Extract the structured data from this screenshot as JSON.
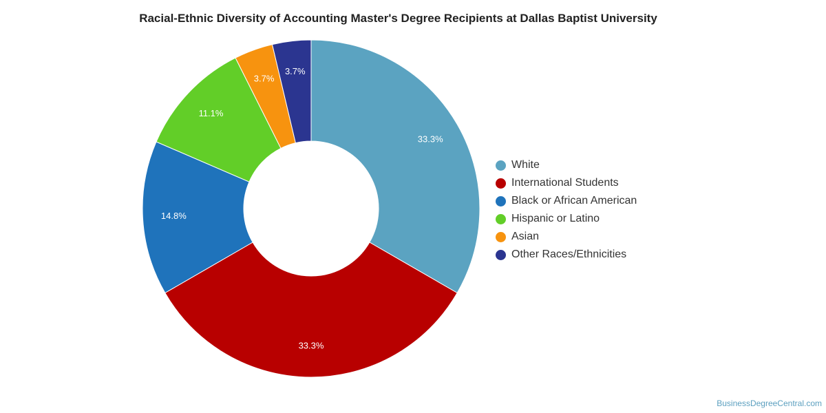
{
  "chart_data": {
    "type": "pie",
    "title": "Racial-Ethnic Diversity of Accounting Master's Degree Recipients at Dallas Baptist University",
    "legend_position": "right",
    "donut": true,
    "slices": [
      {
        "label": "White",
        "value": 33.3,
        "display": "33.3%",
        "color": "#5ba3c1"
      },
      {
        "label": "International Students",
        "value": 33.3,
        "display": "33.3%",
        "color": "#b80000"
      },
      {
        "label": "Black or African American",
        "value": 14.8,
        "display": "14.8%",
        "color": "#1f73bb"
      },
      {
        "label": "Hispanic or Latino",
        "value": 11.1,
        "display": "11.1%",
        "color": "#62ce28"
      },
      {
        "label": "Asian",
        "value": 3.7,
        "display": "3.7%",
        "color": "#f7930f"
      },
      {
        "label": "Other Races/Ethnicities",
        "value": 3.7,
        "display": "3.7%",
        "color": "#2b3590"
      }
    ]
  },
  "credit": "BusinessDegreeCentral.com"
}
